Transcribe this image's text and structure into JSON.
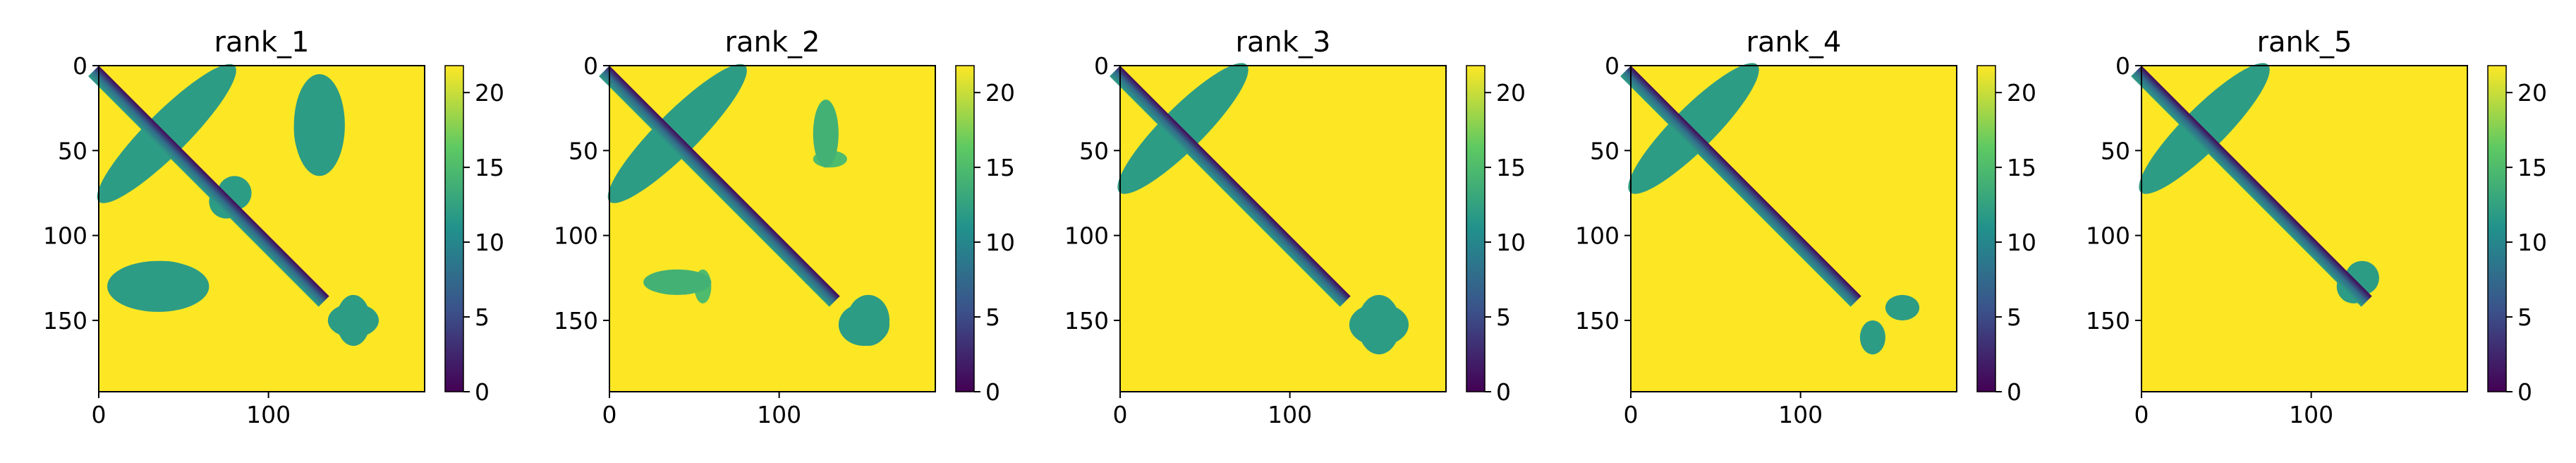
{
  "colormap": {
    "name": "viridis",
    "stops": [
      "#440154",
      "#3b528b",
      "#21918c",
      "#5ec962",
      "#fde725"
    ]
  },
  "chart_data": [
    {
      "type": "heatmap",
      "title": "rank_1",
      "xlabel": "",
      "ylabel": "",
      "xlim": [
        0,
        192
      ],
      "ylim": [
        192,
        0
      ],
      "xticks": [
        0,
        100
      ],
      "yticks": [
        0,
        50,
        100,
        150
      ],
      "colorbar": {
        "range": [
          0,
          21.8
        ],
        "ticks": [
          0,
          5,
          10,
          15,
          20
        ]
      },
      "diagonal_band": {
        "value_at_center": 0,
        "typical_width": 8
      },
      "off_diagonal_contacts": [
        {
          "x": [
            0,
            80
          ],
          "y": [
            0,
            80
          ],
          "orientation": "anti-diagonal",
          "center": [
            40,
            40
          ],
          "value": 12
        },
        {
          "x": [
            115,
            140
          ],
          "y": [
            15,
            60
          ],
          "value": 12
        },
        {
          "x": [
            5,
            65
          ],
          "y": [
            115,
            145
          ],
          "value": 12
        },
        {
          "x": [
            70,
            90
          ],
          "y": [
            65,
            85
          ],
          "value": 12
        },
        {
          "x": [
            140,
            160
          ],
          "y": [
            135,
            165
          ],
          "value": 12
        }
      ]
    },
    {
      "type": "heatmap",
      "title": "rank_2",
      "xlabel": "",
      "ylabel": "",
      "xlim": [
        0,
        192
      ],
      "ylim": [
        192,
        0
      ],
      "xticks": [
        0,
        100
      ],
      "yticks": [
        0,
        50,
        100,
        150
      ],
      "colorbar": {
        "range": [
          0,
          21.8
        ],
        "ticks": [
          0,
          5,
          10,
          15,
          20
        ]
      },
      "diagonal_band": {
        "value_at_center": 0,
        "typical_width": 8
      },
      "off_diagonal_contacts": [
        {
          "x": [
            0,
            80
          ],
          "y": [
            0,
            80
          ],
          "orientation": "anti-diagonal",
          "center": [
            40,
            40
          ],
          "value": 12
        },
        {
          "x": [
            120,
            140
          ],
          "y": [
            50,
            60
          ],
          "value": 15
        },
        {
          "x": [
            20,
            60
          ],
          "y": [
            120,
            135
          ],
          "value": 14
        },
        {
          "x": [
            140,
            165
          ],
          "y": [
            135,
            165
          ],
          "value": 12
        }
      ]
    },
    {
      "type": "heatmap",
      "title": "rank_3",
      "xlabel": "",
      "ylabel": "",
      "xlim": [
        0,
        192
      ],
      "ylim": [
        192,
        0
      ],
      "xticks": [
        0,
        100
      ],
      "yticks": [
        0,
        50,
        100,
        150
      ],
      "colorbar": {
        "range": [
          0,
          21.8
        ],
        "ticks": [
          0,
          5,
          10,
          15,
          20
        ]
      },
      "diagonal_band": {
        "value_at_center": 0,
        "typical_width": 8
      },
      "off_diagonal_contacts": [
        {
          "x": [
            0,
            75
          ],
          "y": [
            0,
            75
          ],
          "orientation": "anti-diagonal",
          "center": [
            37,
            37
          ],
          "value": 12
        },
        {
          "x": [
            140,
            165
          ],
          "y": [
            135,
            170
          ],
          "value": 12
        }
      ]
    },
    {
      "type": "heatmap",
      "title": "rank_4",
      "xlabel": "",
      "ylabel": "",
      "xlim": [
        0,
        192
      ],
      "ylim": [
        192,
        0
      ],
      "xticks": [
        0,
        100
      ],
      "yticks": [
        0,
        50,
        100,
        150
      ],
      "colorbar": {
        "range": [
          0,
          21.8
        ],
        "ticks": [
          0,
          5,
          10,
          15,
          20
        ]
      },
      "diagonal_band": {
        "value_at_center": 0,
        "typical_width": 8
      },
      "off_diagonal_contacts": [
        {
          "x": [
            0,
            75
          ],
          "y": [
            0,
            75
          ],
          "orientation": "anti-diagonal",
          "center": [
            37,
            37
          ],
          "value": 12
        },
        {
          "x": [
            150,
            170
          ],
          "y": [
            135,
            150
          ],
          "value": 12
        }
      ]
    },
    {
      "type": "heatmap",
      "title": "rank_5",
      "xlabel": "",
      "ylabel": "",
      "xlim": [
        0,
        192
      ],
      "ylim": [
        192,
        0
      ],
      "xticks": [
        0,
        100
      ],
      "yticks": [
        0,
        50,
        100,
        150
      ],
      "colorbar": {
        "range": [
          0,
          21.8
        ],
        "ticks": [
          0,
          5,
          10,
          15,
          20
        ]
      },
      "diagonal_band": {
        "value_at_center": 0,
        "typical_width": 8
      },
      "off_diagonal_contacts": [
        {
          "x": [
            0,
            75
          ],
          "y": [
            0,
            75
          ],
          "orientation": "anti-diagonal",
          "center": [
            37,
            37
          ],
          "value": 12
        },
        {
          "x": [
            120,
            140
          ],
          "y": [
            115,
            135
          ],
          "value": 12
        }
      ]
    }
  ]
}
